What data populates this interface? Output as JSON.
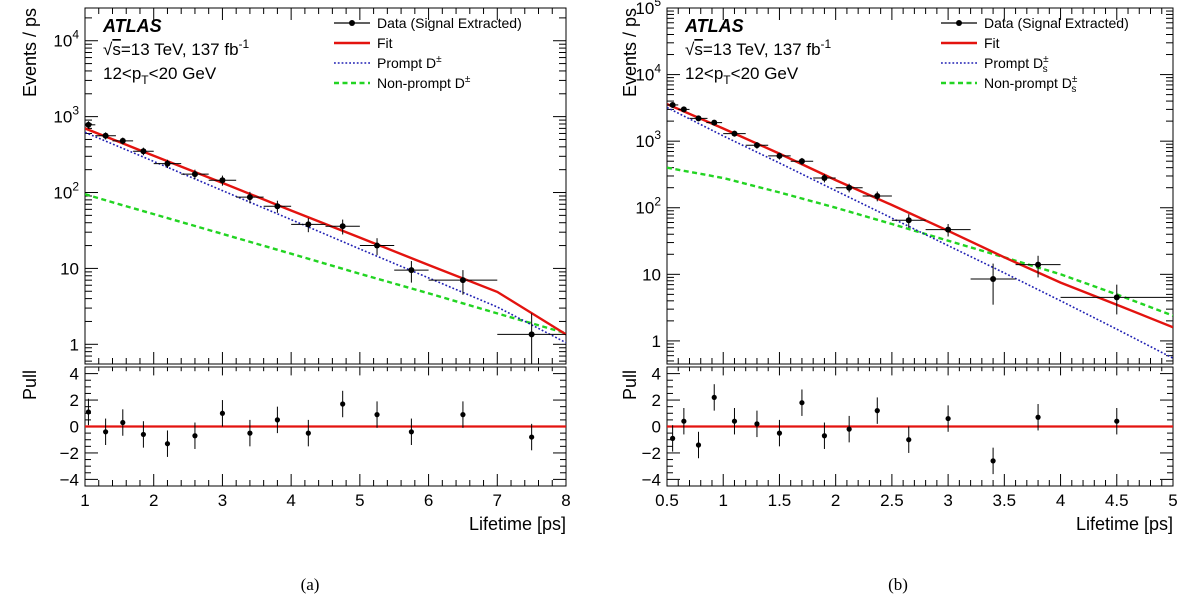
{
  "colors": {
    "data": "#000000",
    "fit": "#e3130f",
    "prompt": "#1f1fb3",
    "nonprompt": "#22d422",
    "pull_line": "#e3130f"
  },
  "chart_data": [
    {
      "type": "scatter",
      "caption": "(a)",
      "label": {
        "experiment": "ATLAS",
        "energy_prefix": "√",
        "energy_s": "s",
        "energy_rest": "=13 TeV, 137 fb",
        "energy_sup": "-1",
        "kin_pre": "12<p",
        "kin_sub": "T",
        "kin_post": "<20 GeV"
      },
      "legend": {
        "position": "top-right",
        "entries": [
          {
            "kind": "data",
            "text": "Data (Signal Extracted)",
            "sub": "",
            "sup": ""
          },
          {
            "kind": "fit",
            "text": "Fit",
            "sub": "",
            "sup": ""
          },
          {
            "kind": "prompt",
            "text": "Prompt D",
            "sub": "",
            "sup": "±"
          },
          {
            "kind": "nonprompt",
            "text": "Non-prompt D",
            "sub": "",
            "sup": "±"
          }
        ]
      },
      "xlabel": "Lifetime [ps]",
      "ylabel": "Events / ps",
      "pull_ylabel": "Pull",
      "xlim": [
        1,
        8
      ],
      "ylim": [
        0.55,
        27000
      ],
      "yscale": "log",
      "pull_ylim": [
        -4.5,
        4.5
      ],
      "x_ticks": [
        1,
        2,
        3,
        4,
        5,
        6,
        7,
        8
      ],
      "x_tick_labels": [
        "1",
        "2",
        "3",
        "4",
        "5",
        "6",
        "7",
        "8"
      ],
      "y_ticks": [
        1,
        10,
        100,
        1000,
        10000
      ],
      "pull_ticks": [
        -4,
        -2,
        0,
        2,
        4
      ],
      "pull_tick_labels": [
        "−4",
        "−2",
        "0",
        "2",
        "4"
      ],
      "data": [
        {
          "x": 1.05,
          "y": 780,
          "xerr": 0.1,
          "yerr_lo": 90,
          "yerr_hi": 90
        },
        {
          "x": 1.3,
          "y": 560,
          "xerr": 0.15,
          "yerr_lo": 60,
          "yerr_hi": 60
        },
        {
          "x": 1.55,
          "y": 480,
          "xerr": 0.15,
          "yerr_lo": 50,
          "yerr_hi": 50
        },
        {
          "x": 1.85,
          "y": 350,
          "xerr": 0.15,
          "yerr_lo": 40,
          "yerr_hi": 40
        },
        {
          "x": 2.2,
          "y": 240,
          "xerr": 0.2,
          "yerr_lo": 30,
          "yerr_hi": 30
        },
        {
          "x": 2.6,
          "y": 175,
          "xerr": 0.2,
          "yerr_lo": 25,
          "yerr_hi": 25
        },
        {
          "x": 3.0,
          "y": 145,
          "xerr": 0.2,
          "yerr_lo": 22,
          "yerr_hi": 22
        },
        {
          "x": 3.4,
          "y": 87,
          "xerr": 0.2,
          "yerr_lo": 15,
          "yerr_hi": 15
        },
        {
          "x": 3.8,
          "y": 66,
          "xerr": 0.2,
          "yerr_lo": 12,
          "yerr_hi": 12
        },
        {
          "x": 4.25,
          "y": 38,
          "xerr": 0.25,
          "yerr_lo": 8,
          "yerr_hi": 8
        },
        {
          "x": 4.75,
          "y": 36,
          "xerr": 0.25,
          "yerr_lo": 8,
          "yerr_hi": 8
        },
        {
          "x": 5.25,
          "y": 20,
          "xerr": 0.25,
          "yerr_lo": 5,
          "yerr_hi": 5
        },
        {
          "x": 5.75,
          "y": 9.5,
          "xerr": 0.25,
          "yerr_lo": 3,
          "yerr_hi": 3
        },
        {
          "x": 6.5,
          "y": 7,
          "xerr": 0.5,
          "yerr_lo": 2.5,
          "yerr_hi": 2.5
        },
        {
          "x": 7.5,
          "y": 1.35,
          "xerr": 0.5,
          "yerr_lo": 1.0,
          "yerr_hi": 1.2
        }
      ],
      "curves": [
        {
          "kind": "fit",
          "x": [
            1,
            1.5,
            2,
            3,
            4,
            5,
            6,
            7,
            8
          ],
          "y": [
            700,
            463,
            306,
            134,
            58,
            25.5,
            11.1,
            4.9,
            1.35
          ]
        },
        {
          "kind": "prompt",
          "x": [
            1,
            1.5,
            2,
            3,
            4,
            5,
            6,
            7,
            8
          ],
          "y": [
            620,
            399,
            257,
            106,
            44,
            18,
            7.5,
            3.1,
            1.05
          ]
        },
        {
          "kind": "nonprompt",
          "x": [
            1,
            1.5,
            2,
            3,
            4,
            5,
            6,
            7,
            8
          ],
          "y": [
            95,
            70,
            52,
            28.5,
            15.6,
            8.5,
            4.7,
            2.55,
            1.4
          ]
        }
      ],
      "pulls": [
        {
          "x": 1.05,
          "y": 1.1,
          "err": 1.0
        },
        {
          "x": 1.3,
          "y": -0.4,
          "err": 1.0
        },
        {
          "x": 1.55,
          "y": 0.3,
          "err": 1.0
        },
        {
          "x": 1.85,
          "y": -0.6,
          "err": 1.0
        },
        {
          "x": 2.2,
          "y": -1.3,
          "err": 1.0
        },
        {
          "x": 2.6,
          "y": -0.7,
          "err": 1.0
        },
        {
          "x": 3.0,
          "y": 1.0,
          "err": 1.0
        },
        {
          "x": 3.4,
          "y": -0.5,
          "err": 1.0
        },
        {
          "x": 3.8,
          "y": 0.5,
          "err": 1.0
        },
        {
          "x": 4.25,
          "y": -0.5,
          "err": 1.0
        },
        {
          "x": 4.75,
          "y": 1.7,
          "err": 1.0
        },
        {
          "x": 5.25,
          "y": 0.9,
          "err": 1.0
        },
        {
          "x": 5.75,
          "y": -0.4,
          "err": 1.0
        },
        {
          "x": 6.5,
          "y": 0.9,
          "err": 1.0
        },
        {
          "x": 7.5,
          "y": -0.8,
          "err": 1.0
        }
      ]
    },
    {
      "type": "scatter",
      "caption": "(b)",
      "label": {
        "experiment": "ATLAS",
        "energy_prefix": "√",
        "energy_s": "s",
        "energy_rest": "=13 TeV, 137 fb",
        "energy_sup": "-1",
        "kin_pre": "12<p",
        "kin_sub": "T",
        "kin_post": "<20 GeV"
      },
      "legend": {
        "position": "top-right",
        "entries": [
          {
            "kind": "data",
            "text": "Data (Signal Extracted)",
            "sub": "",
            "sup": ""
          },
          {
            "kind": "fit",
            "text": "Fit",
            "sub": "",
            "sup": ""
          },
          {
            "kind": "prompt",
            "text": "Prompt D",
            "sub": "s",
            "sup": "±"
          },
          {
            "kind": "nonprompt",
            "text": "Non-prompt D",
            "sub": "s",
            "sup": "±"
          }
        ]
      },
      "xlabel": "Lifetime [ps]",
      "ylabel": "Events / ps",
      "pull_ylabel": "Pull",
      "xlim": [
        0.5,
        5
      ],
      "ylim": [
        0.45,
        100000
      ],
      "yscale": "log",
      "pull_ylim": [
        -4.5,
        4.5
      ],
      "x_ticks": [
        0.5,
        1,
        1.5,
        2,
        2.5,
        3,
        3.5,
        4,
        4.5,
        5
      ],
      "x_tick_labels": [
        "0.5",
        "1",
        "1.5",
        "2",
        "2.5",
        "3",
        "3.5",
        "4",
        "4.5",
        "5"
      ],
      "y_ticks": [
        1,
        10,
        100,
        1000,
        10000,
        100000
      ],
      "pull_ticks": [
        -4,
        -2,
        0,
        2,
        4
      ],
      "pull_tick_labels": [
        "−4",
        "−2",
        "0",
        "2",
        "4"
      ],
      "data": [
        {
          "x": 0.55,
          "y": 3500,
          "xerr": 0.05,
          "yerr_lo": 300,
          "yerr_hi": 300
        },
        {
          "x": 0.65,
          "y": 3000,
          "xerr": 0.05,
          "yerr_lo": 250,
          "yerr_hi": 250
        },
        {
          "x": 0.78,
          "y": 2200,
          "xerr": 0.08,
          "yerr_lo": 200,
          "yerr_hi": 200
        },
        {
          "x": 0.92,
          "y": 1900,
          "xerr": 0.07,
          "yerr_lo": 180,
          "yerr_hi": 180
        },
        {
          "x": 1.1,
          "y": 1300,
          "xerr": 0.1,
          "yerr_lo": 130,
          "yerr_hi": 130
        },
        {
          "x": 1.3,
          "y": 870,
          "xerr": 0.1,
          "yerr_lo": 100,
          "yerr_hi": 100
        },
        {
          "x": 1.5,
          "y": 600,
          "xerr": 0.1,
          "yerr_lo": 70,
          "yerr_hi": 70
        },
        {
          "x": 1.7,
          "y": 500,
          "xerr": 0.1,
          "yerr_lo": 60,
          "yerr_hi": 60
        },
        {
          "x": 1.9,
          "y": 280,
          "xerr": 0.1,
          "yerr_lo": 40,
          "yerr_hi": 40
        },
        {
          "x": 2.12,
          "y": 200,
          "xerr": 0.12,
          "yerr_lo": 30,
          "yerr_hi": 30
        },
        {
          "x": 2.37,
          "y": 150,
          "xerr": 0.13,
          "yerr_lo": 25,
          "yerr_hi": 25
        },
        {
          "x": 2.65,
          "y": 65,
          "xerr": 0.15,
          "yerr_lo": 15,
          "yerr_hi": 15
        },
        {
          "x": 3.0,
          "y": 47,
          "xerr": 0.2,
          "yerr_lo": 10,
          "yerr_hi": 10
        },
        {
          "x": 3.4,
          "y": 8.5,
          "xerr": 0.2,
          "yerr_lo": 5,
          "yerr_hi": 6
        },
        {
          "x": 3.8,
          "y": 14,
          "xerr": 0.2,
          "yerr_lo": 5,
          "yerr_hi": 5
        },
        {
          "x": 4.5,
          "y": 4.5,
          "xerr": 0.5,
          "yerr_lo": 2,
          "yerr_hi": 2.5
        }
      ],
      "curves": [
        {
          "kind": "fit",
          "x": [
            0.5,
            1,
            1.5,
            2,
            2.5,
            3,
            3.5,
            4,
            4.5,
            5
          ],
          "y": [
            3600,
            1550,
            650,
            260,
            110,
            45,
            18,
            7.5,
            3.5,
            1.6
          ]
        },
        {
          "kind": "prompt",
          "x": [
            0.5,
            1,
            1.5,
            2,
            2.5,
            3,
            3.5,
            4,
            4.5,
            5
          ],
          "y": [
            3200,
            1200,
            470,
            180,
            70,
            27,
            10.5,
            4,
            1.5,
            0.55
          ]
        },
        {
          "kind": "nonprompt",
          "x": [
            0.5,
            1,
            1.5,
            2,
            2.5,
            3,
            3.5,
            4,
            4.5,
            5
          ],
          "y": [
            400,
            280,
            170,
            100,
            57,
            32,
            18,
            10,
            5,
            2.4
          ]
        }
      ],
      "pulls": [
        {
          "x": 0.55,
          "y": -0.9,
          "err": 1.0
        },
        {
          "x": 0.65,
          "y": 0.4,
          "err": 1.0
        },
        {
          "x": 0.78,
          "y": -1.4,
          "err": 1.0
        },
        {
          "x": 0.92,
          "y": 2.2,
          "err": 1.0
        },
        {
          "x": 1.1,
          "y": 0.4,
          "err": 1.0
        },
        {
          "x": 1.3,
          "y": 0.2,
          "err": 1.0
        },
        {
          "x": 1.5,
          "y": -0.5,
          "err": 1.0
        },
        {
          "x": 1.7,
          "y": 1.8,
          "err": 1.0
        },
        {
          "x": 1.9,
          "y": -0.7,
          "err": 1.0
        },
        {
          "x": 2.12,
          "y": -0.2,
          "err": 1.0
        },
        {
          "x": 2.37,
          "y": 1.2,
          "err": 1.0
        },
        {
          "x": 2.65,
          "y": -1.0,
          "err": 1.0
        },
        {
          "x": 3.0,
          "y": 0.6,
          "err": 1.0
        },
        {
          "x": 3.4,
          "y": -2.6,
          "err": 1.0
        },
        {
          "x": 3.8,
          "y": 0.7,
          "err": 1.0
        },
        {
          "x": 4.5,
          "y": 0.4,
          "err": 1.0
        }
      ]
    }
  ]
}
